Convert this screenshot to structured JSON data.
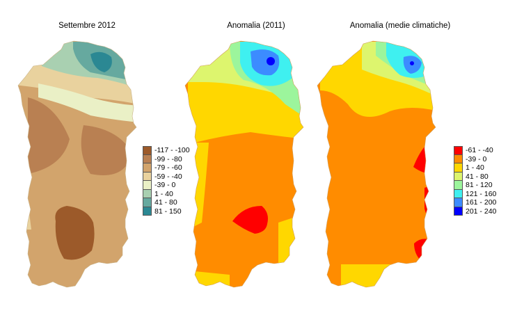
{
  "maps": [
    {
      "title": "Settembre 2012",
      "legend": [
        {
          "label": "-117 - -100",
          "color": "#9c5a2a"
        },
        {
          "label": "-99 - -80",
          "color": "#b98052"
        },
        {
          "label": "-79 - -60",
          "color": "#d2a46c"
        },
        {
          "label": "-59 - -40",
          "color": "#e9d29e"
        },
        {
          "label": "-39 - 0",
          "color": "#eaf0c6"
        },
        {
          "label": "1 - 40",
          "color": "#a9d0b1"
        },
        {
          "label": "41 - 80",
          "color": "#66a99f"
        },
        {
          "label": "81 - 150",
          "color": "#2b8893"
        }
      ]
    },
    {
      "title": "Anomalia (2011)"
    },
    {
      "title": "Anomalia (medie climatiche)",
      "legend": [
        {
          "label": "-61 - -40",
          "color": "#ff0000"
        },
        {
          "label": "-39 - 0",
          "color": "#ff8c00"
        },
        {
          "label": "1 - 40",
          "color": "#ffd700"
        },
        {
          "label": "41 - 80",
          "color": "#ddf56e"
        },
        {
          "label": "81 - 120",
          "color": "#9cf59c"
        },
        {
          "label": "121 - 160",
          "color": "#3ff0f0"
        },
        {
          "label": "161 - 200",
          "color": "#3c8cff"
        },
        {
          "label": "201 - 240",
          "color": "#0000ff"
        }
      ]
    }
  ]
}
